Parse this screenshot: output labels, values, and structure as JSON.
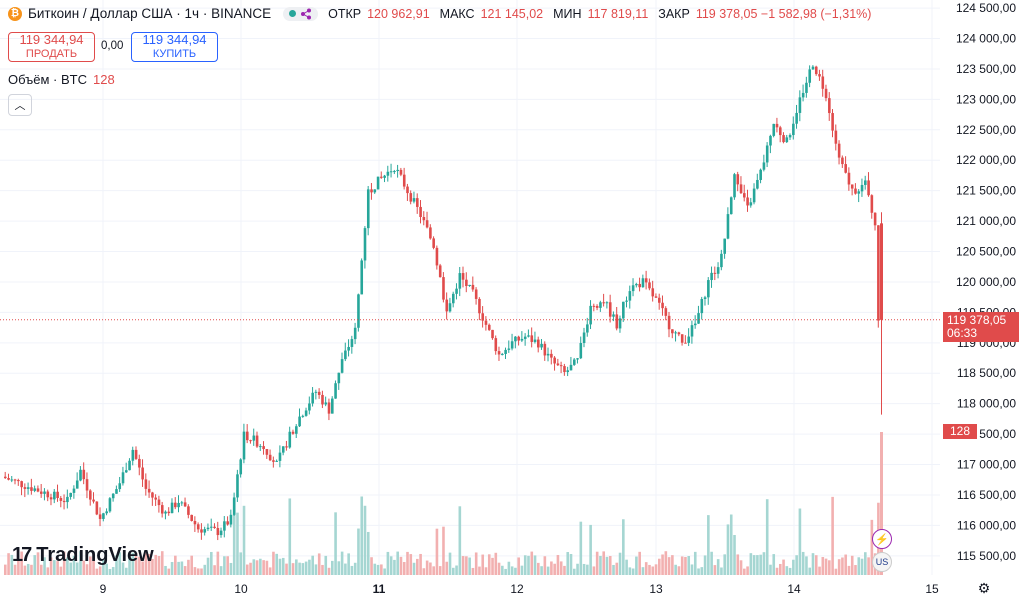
{
  "header": {
    "coin_icon": "bitcoin-icon",
    "symbol_title": "Биткоин / Доллар США · 1ч · BINANCE",
    "status_icon": "market-open-dot-icon",
    "ohlc": [
      {
        "key": "ОТКР",
        "value": "120 962,91"
      },
      {
        "key": "МАКС",
        "value": "121 145,02"
      },
      {
        "key": "МИН",
        "value": "117 819,11"
      },
      {
        "key": "ЗАКР",
        "value": "119 378,05 −1 582,98 (−1,31%)"
      }
    ]
  },
  "trade": {
    "sell_price": "119 344,94",
    "sell_label": "ПРОДАТЬ",
    "spread": "0,00",
    "buy_price": "119 344,94",
    "buy_label": "КУПИТЬ"
  },
  "volume_legend": {
    "label": "Объём · BTC",
    "value": "128"
  },
  "price_label": {
    "price": "119 378,05",
    "countdown": "06:33"
  },
  "volume_label": "128",
  "logo_text": "TradingView",
  "colors": {
    "up": "#26a69a",
    "down": "#e04b4b",
    "up_vol": "#a5d6d2",
    "down_vol": "#f2b0b0",
    "grid": "#f0f3fa"
  },
  "chart_data": {
    "type": "candlestick",
    "y_ticks": [
      "124 500,00",
      "124 000,00",
      "123 500,00",
      "123 000,00",
      "122 500,00",
      "122 000,00",
      "121 500,00",
      "121 000,00",
      "120 500,00",
      "120 000,00",
      "119 500,00",
      "119 000,00",
      "118 500,00",
      "118 000,00",
      "117 500,00",
      "117 000,00",
      "116 500,00",
      "116 000,00",
      "115 500,00"
    ],
    "x_ticks": [
      "9",
      "10",
      "11",
      "12",
      "13",
      "14",
      "15"
    ],
    "ylim": [
      115300,
      124600
    ],
    "current_price": 119378.05,
    "close_points": [
      {
        "t": 0,
        "c": 116800
      },
      {
        "t": 10,
        "c": 116600
      },
      {
        "t": 20,
        "c": 116400
      },
      {
        "t": 24,
        "c": 116900
      },
      {
        "t": 30,
        "c": 116100
      },
      {
        "t": 36,
        "c": 116700
      },
      {
        "t": 40,
        "c": 117250
      },
      {
        "t": 44,
        "c": 116600
      },
      {
        "t": 50,
        "c": 116200
      },
      {
        "t": 54,
        "c": 116400
      },
      {
        "t": 60,
        "c": 115950
      },
      {
        "t": 66,
        "c": 115900
      },
      {
        "t": 70,
        "c": 116100
      },
      {
        "t": 74,
        "c": 117500
      },
      {
        "t": 80,
        "c": 117300
      },
      {
        "t": 84,
        "c": 117000
      },
      {
        "t": 90,
        "c": 117700
      },
      {
        "t": 96,
        "c": 118200
      },
      {
        "t": 100,
        "c": 117900
      },
      {
        "t": 104,
        "c": 118700
      },
      {
        "t": 108,
        "c": 119200
      },
      {
        "t": 112,
        "c": 121500
      },
      {
        "t": 116,
        "c": 121700
      },
      {
        "t": 120,
        "c": 121900
      },
      {
        "t": 124,
        "c": 121500
      },
      {
        "t": 128,
        "c": 121100
      },
      {
        "t": 132,
        "c": 120600
      },
      {
        "t": 136,
        "c": 119500
      },
      {
        "t": 140,
        "c": 120100
      },
      {
        "t": 144,
        "c": 119800
      },
      {
        "t": 148,
        "c": 119300
      },
      {
        "t": 152,
        "c": 118800
      },
      {
        "t": 156,
        "c": 119000
      },
      {
        "t": 160,
        "c": 119100
      },
      {
        "t": 164,
        "c": 119000
      },
      {
        "t": 168,
        "c": 118700
      },
      {
        "t": 172,
        "c": 118500
      },
      {
        "t": 176,
        "c": 118700
      },
      {
        "t": 180,
        "c": 119600
      },
      {
        "t": 184,
        "c": 119700
      },
      {
        "t": 188,
        "c": 119300
      },
      {
        "t": 192,
        "c": 119900
      },
      {
        "t": 196,
        "c": 120000
      },
      {
        "t": 200,
        "c": 119700
      },
      {
        "t": 204,
        "c": 119300
      },
      {
        "t": 208,
        "c": 119000
      },
      {
        "t": 212,
        "c": 119300
      },
      {
        "t": 216,
        "c": 120000
      },
      {
        "t": 220,
        "c": 120400
      },
      {
        "t": 224,
        "c": 121700
      },
      {
        "t": 228,
        "c": 121200
      },
      {
        "t": 232,
        "c": 121800
      },
      {
        "t": 236,
        "c": 122600
      },
      {
        "t": 240,
        "c": 122300
      },
      {
        "t": 244,
        "c": 123000
      },
      {
        "t": 248,
        "c": 123600
      },
      {
        "t": 252,
        "c": 123100
      },
      {
        "t": 256,
        "c": 122000
      },
      {
        "t": 260,
        "c": 121500
      },
      {
        "t": 264,
        "c": 121600
      },
      {
        "t": 267,
        "c": 120962.91
      },
      {
        "t": 268,
        "c": 119378.05
      }
    ],
    "last_candle": {
      "open": 120962.91,
      "high": 121145.02,
      "low": 117819.11,
      "close": 119378.05
    }
  }
}
